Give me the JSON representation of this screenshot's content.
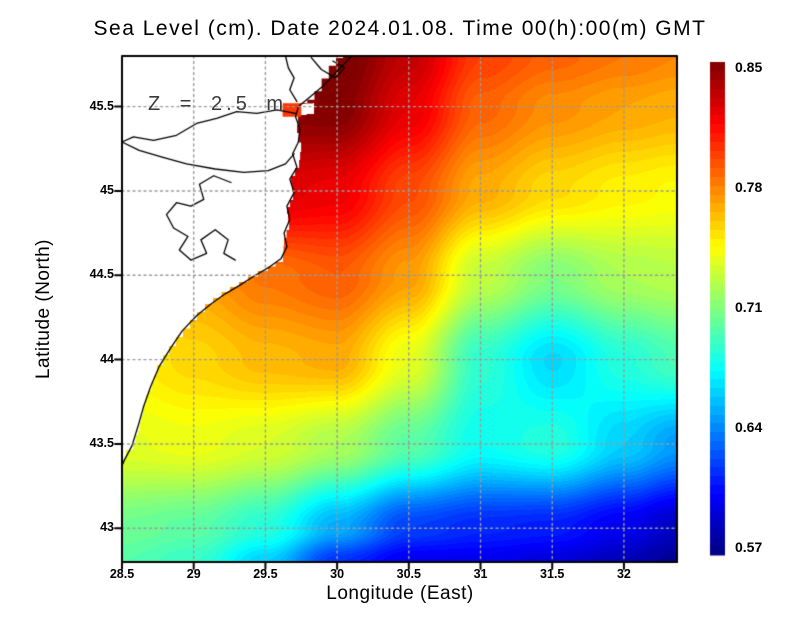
{
  "title": "Sea Level (cm). Date 2024.01.08. Time 00(h):00(m) GMT",
  "annotation": "Z = 2.5 m",
  "axes": {
    "xlabel": "Longitude (East)",
    "ylabel": "Latitude (North)",
    "x_ticks": [
      {
        "label": "28.5",
        "value": 28.5
      },
      {
        "label": "29",
        "value": 29.0
      },
      {
        "label": "29.5",
        "value": 29.5
      },
      {
        "label": "30",
        "value": 30.0
      },
      {
        "label": "30.5",
        "value": 30.5
      },
      {
        "label": "31",
        "value": 31.0
      },
      {
        "label": "31.5",
        "value": 31.5
      },
      {
        "label": "32",
        "value": 32.0
      }
    ],
    "y_ticks": [
      {
        "label": "45.5",
        "value": 45.5
      },
      {
        "label": "45",
        "value": 45.0
      },
      {
        "label": "44.5",
        "value": 44.5
      },
      {
        "label": "44",
        "value": 44.0
      },
      {
        "label": "43.5",
        "value": 43.5
      },
      {
        "label": "43",
        "value": 43.0
      }
    ],
    "grid": true
  },
  "colorbar": {
    "tick_labels": [
      "0.85",
      "0.78",
      "0.71",
      "0.64",
      "0.57"
    ],
    "min": 0.57,
    "max": 0.85,
    "colormap": "jet",
    "top_color": "#800000",
    "bottom_color": "#000080"
  },
  "colors": {
    "land": "#ffffff",
    "coastline": "#000000",
    "gridline": "#9b9b9b",
    "frame": "#000000",
    "text": "#000000",
    "annotation_text": "#3a3a3a"
  },
  "chart_data": {
    "type": "heatmap",
    "title": "Sea Level (cm). Date 2024.01.08. Time 00(h):00(m) GMT",
    "xlabel": "Longitude (East)",
    "ylabel": "Latitude (North)",
    "xlim": [
      28.5,
      32.37
    ],
    "ylim": [
      42.8,
      45.8
    ],
    "legend_position": "right-colorbar",
    "colorbar_ticks": [
      0.57,
      0.64,
      0.71,
      0.78,
      0.85
    ],
    "value_step": 0.004,
    "x": [
      28.5,
      29.0,
      29.5,
      30.0,
      30.5,
      31.0,
      31.5,
      32.0,
      32.37
    ],
    "y": [
      45.8,
      45.5,
      45.0,
      44.5,
      44.0,
      43.5,
      43.0,
      42.8
    ],
    "values": [
      [
        0.85,
        0.85,
        0.852,
        0.855,
        0.832,
        0.798,
        0.788,
        0.782,
        0.778
      ],
      [
        0.845,
        0.846,
        0.848,
        0.85,
        0.822,
        0.788,
        0.776,
        0.77,
        0.767
      ],
      [
        0.82,
        0.822,
        0.825,
        0.82,
        0.795,
        0.768,
        0.755,
        0.748,
        0.745
      ],
      [
        0.762,
        0.77,
        0.783,
        0.79,
        0.772,
        0.728,
        0.71,
        0.722,
        0.725
      ],
      [
        0.748,
        0.756,
        0.764,
        0.768,
        0.738,
        0.688,
        0.665,
        0.685,
        0.695
      ],
      [
        0.737,
        0.74,
        0.734,
        0.722,
        0.7,
        0.678,
        0.685,
        0.662,
        0.648
      ],
      [
        0.705,
        0.7,
        0.685,
        0.652,
        0.622,
        0.615,
        0.612,
        0.6,
        0.588
      ],
      [
        0.698,
        0.69,
        0.662,
        0.618,
        0.6,
        0.6,
        0.595,
        0.585,
        0.575
      ]
    ]
  },
  "map": {
    "sea_edge": [
      [
        30.104,
        45.8
      ],
      [
        30.042,
        45.788
      ],
      [
        29.742,
        45.515
      ],
      [
        29.832,
        45.521
      ],
      [
        29.839,
        45.456
      ],
      [
        29.735,
        45.444
      ],
      [
        29.721,
        45.343
      ],
      [
        29.749,
        45.231
      ],
      [
        29.735,
        45.136
      ],
      [
        29.679,
        45.041
      ],
      [
        29.693,
        44.946
      ],
      [
        29.651,
        44.863
      ],
      [
        29.665,
        44.768
      ],
      [
        29.63,
        44.674
      ],
      [
        29.623,
        44.579
      ],
      [
        29.518,
        44.525
      ],
      [
        29.379,
        44.46
      ],
      [
        29.253,
        44.401
      ],
      [
        29.135,
        44.33
      ],
      [
        29.023,
        44.235
      ],
      [
        28.925,
        44.134
      ],
      [
        28.828,
        44.027
      ],
      [
        28.744,
        43.909
      ],
      [
        28.688,
        43.79
      ],
      [
        28.646,
        43.672
      ],
      [
        28.612,
        43.553
      ],
      [
        28.577,
        43.464
      ],
      [
        28.528,
        43.411
      ],
      [
        28.5,
        43.387
      ]
    ],
    "sea_patch": {
      "lon_min": 29.62,
      "lon_max": 29.75,
      "lat_min": 45.44,
      "lat_max": 45.52,
      "value": 0.8
    },
    "coastlines": [
      {
        "name": "main-coast",
        "pts": [
          [
            30.1,
            45.8
          ],
          [
            30.0,
            45.71
          ],
          [
            29.9,
            45.62
          ],
          [
            29.8,
            45.55
          ],
          [
            29.73,
            45.5
          ],
          [
            29.71,
            45.44
          ],
          [
            29.74,
            45.37
          ],
          [
            29.73,
            45.29
          ],
          [
            29.69,
            45.22
          ],
          [
            29.72,
            45.14
          ],
          [
            29.67,
            45.07
          ],
          [
            29.7,
            44.99
          ],
          [
            29.65,
            44.91
          ],
          [
            29.67,
            44.83
          ],
          [
            29.63,
            44.75
          ],
          [
            29.65,
            44.67
          ],
          [
            29.61,
            44.6
          ],
          [
            29.53,
            44.55
          ],
          [
            29.43,
            44.5
          ],
          [
            29.32,
            44.44
          ],
          [
            29.22,
            44.39
          ],
          [
            29.12,
            44.33
          ],
          [
            29.02,
            44.26
          ],
          [
            28.92,
            44.17
          ],
          [
            28.84,
            44.07
          ],
          [
            28.76,
            43.96
          ],
          [
            28.7,
            43.84
          ],
          [
            28.65,
            43.72
          ],
          [
            28.61,
            43.6
          ],
          [
            28.57,
            43.49
          ],
          [
            28.52,
            43.41
          ],
          [
            28.5,
            43.37
          ]
        ]
      },
      {
        "name": "danube-delta",
        "pts": [
          [
            29.71,
            45.46
          ],
          [
            29.58,
            45.48
          ],
          [
            29.44,
            45.46
          ],
          [
            29.3,
            45.47
          ],
          [
            29.16,
            45.43
          ],
          [
            29.02,
            45.4
          ],
          [
            28.88,
            45.33
          ],
          [
            28.72,
            45.3
          ],
          [
            28.58,
            45.32
          ],
          [
            28.5,
            45.29
          ],
          [
            28.62,
            45.24
          ],
          [
            28.78,
            45.2
          ],
          [
            28.95,
            45.16
          ],
          [
            29.15,
            45.13
          ],
          [
            29.35,
            45.11
          ],
          [
            29.52,
            45.12
          ],
          [
            29.64,
            45.16
          ],
          [
            29.7,
            45.22
          ]
        ]
      },
      {
        "name": "razim-lagoon",
        "pts": [
          [
            29.26,
            45.05
          ],
          [
            29.14,
            45.09
          ],
          [
            29.04,
            45.04
          ],
          [
            29.07,
            44.95
          ],
          [
            28.98,
            44.91
          ],
          [
            28.88,
            44.93
          ],
          [
            28.81,
            44.86
          ],
          [
            28.86,
            44.78
          ],
          [
            28.96,
            44.73
          ],
          [
            28.9,
            44.65
          ],
          [
            28.98,
            44.59
          ],
          [
            29.09,
            44.63
          ],
          [
            29.05,
            44.71
          ],
          [
            29.15,
            44.77
          ],
          [
            29.24,
            44.71
          ],
          [
            29.21,
            44.63
          ],
          [
            29.29,
            44.59
          ]
        ]
      },
      {
        "name": "chilia-branch",
        "pts": [
          [
            29.64,
            45.8
          ],
          [
            29.66,
            45.73
          ],
          [
            29.7,
            45.67
          ],
          [
            29.67,
            45.6
          ],
          [
            29.72,
            45.53
          ]
        ]
      },
      {
        "name": "top-islets",
        "pts": [
          [
            29.82,
            45.79
          ],
          [
            29.89,
            45.72
          ],
          [
            29.99,
            45.67
          ],
          [
            30.05,
            45.73
          ],
          [
            29.97,
            45.77
          ]
        ]
      }
    ]
  }
}
